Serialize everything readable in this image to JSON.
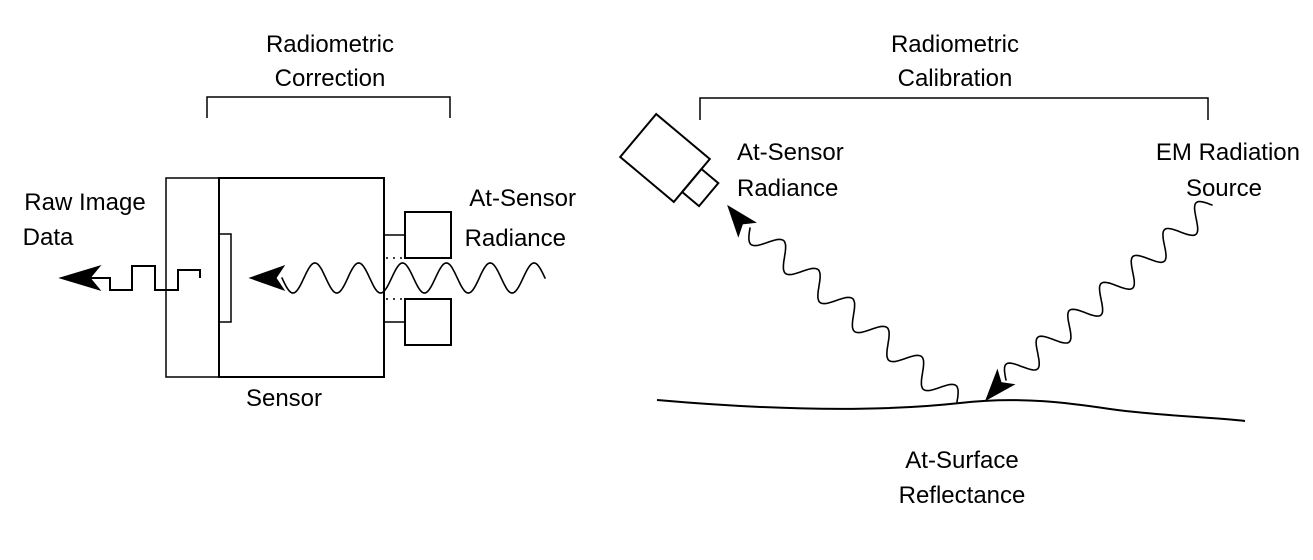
{
  "left_panel": {
    "bracket_label": [
      "Radiometric",
      "Correction"
    ],
    "output_label": [
      "Raw Image",
      "Data"
    ],
    "input_label": [
      "At-Sensor",
      "Radiance"
    ],
    "sensor_label": "Sensor"
  },
  "right_panel": {
    "bracket_label": [
      "Radiometric",
      "Calibration"
    ],
    "sensor_label": [
      "At-Sensor",
      "Radiance"
    ],
    "source_label": [
      "EM Radiation",
      "Source"
    ],
    "surface_label": [
      "At-Surface",
      "Reflectance"
    ]
  },
  "colors": {
    "line": "#000000",
    "background": "#ffffff"
  }
}
